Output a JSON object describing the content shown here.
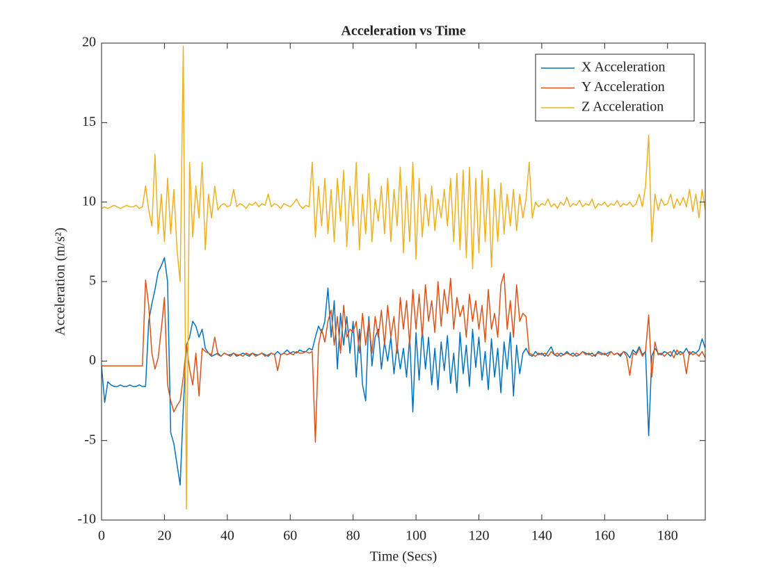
{
  "chart_data": {
    "type": "line",
    "title": "Acceleration vs Time",
    "xlabel": "Time (Secs)",
    "ylabel": "Acceleration (m/s²)",
    "xlim": [
      0,
      192
    ],
    "ylim": [
      -10,
      20
    ],
    "xticks": [
      0,
      20,
      40,
      60,
      80,
      100,
      120,
      140,
      160,
      180
    ],
    "yticks": [
      -10,
      -5,
      0,
      5,
      10,
      15,
      20
    ],
    "legend": "upper right",
    "x": [
      0,
      1,
      2,
      3,
      4,
      5,
      6,
      7,
      8,
      9,
      10,
      11,
      12,
      13,
      14,
      15,
      16,
      17,
      18,
      19,
      20,
      21,
      22,
      23,
      24,
      25,
      26,
      27,
      28,
      29,
      30,
      31,
      32,
      33,
      34,
      35,
      36,
      37,
      38,
      39,
      40,
      41,
      42,
      43,
      44,
      45,
      46,
      47,
      48,
      49,
      50,
      51,
      52,
      53,
      54,
      55,
      56,
      57,
      58,
      59,
      60,
      61,
      62,
      63,
      64,
      65,
      66,
      67,
      68,
      69,
      70,
      71,
      72,
      73,
      74,
      75,
      76,
      77,
      78,
      79,
      80,
      81,
      82,
      83,
      84,
      85,
      86,
      87,
      88,
      89,
      90,
      91,
      92,
      93,
      94,
      95,
      96,
      97,
      98,
      99,
      100,
      101,
      102,
      103,
      104,
      105,
      106,
      107,
      108,
      109,
      110,
      111,
      112,
      113,
      114,
      115,
      116,
      117,
      118,
      119,
      120,
      121,
      122,
      123,
      124,
      125,
      126,
      127,
      128,
      129,
      130,
      131,
      132,
      133,
      134,
      135,
      136,
      137,
      138,
      139,
      140,
      141,
      142,
      143,
      144,
      145,
      146,
      147,
      148,
      149,
      150,
      151,
      152,
      153,
      154,
      155,
      156,
      157,
      158,
      159,
      160,
      161,
      162,
      163,
      164,
      165,
      166,
      167,
      168,
      169,
      170,
      171,
      172,
      173,
      174,
      175,
      176,
      177,
      178,
      179,
      180,
      181,
      182,
      183,
      184,
      185,
      186,
      187,
      188,
      189,
      190,
      191,
      192
    ],
    "series": [
      {
        "name": "X Acceleration",
        "color": "#0072BD",
        "values": [
          -0.3,
          -2.6,
          -1.3,
          -1.5,
          -1.6,
          -1.6,
          -1.5,
          -1.6,
          -1.6,
          -1.5,
          -1.6,
          -1.6,
          -1.5,
          -1.6,
          -1.6,
          2.5,
          3.6,
          4.5,
          5.6,
          6.0,
          6.5,
          5.0,
          -4.5,
          -5.2,
          -6.5,
          -7.8,
          -3.0,
          1.0,
          1.5,
          2.5,
          2.2,
          1.5,
          2.0,
          0.8,
          0.5,
          0.3,
          0.4,
          0.5,
          0.3,
          0.5,
          0.4,
          0.4,
          0.5,
          0.3,
          0.4,
          0.5,
          0.4,
          0.3,
          0.5,
          0.4,
          0.4,
          0.5,
          0.4,
          0.3,
          0.5,
          0.4,
          0.6,
          0.4,
          0.5,
          0.7,
          0.5,
          0.6,
          0.5,
          0.7,
          0.6,
          0.6,
          0.8,
          0.7,
          1.5,
          2.2,
          1.8,
          2.5,
          4.6,
          1.5,
          3.8,
          -0.5,
          3.0,
          1.0,
          2.8,
          0.5,
          2.5,
          -1.0,
          2.0,
          -1.5,
          -2.5,
          2.8,
          -0.3,
          1.5,
          2.0,
          -0.5,
          1.2,
          0.0,
          1.5,
          -0.8,
          1.0,
          -0.5,
          0.8,
          -1.0,
          1.5,
          -3.2,
          1.8,
          -1.2,
          2.0,
          -0.5,
          1.5,
          -1.5,
          0.8,
          -1.8,
          1.2,
          -0.6,
          1.6,
          -1.4,
          0.5,
          -2.0,
          1.8,
          -0.8,
          1.0,
          -1.6,
          2.0,
          -0.4,
          1.5,
          -1.2,
          0.6,
          -1.8,
          1.4,
          -1.0,
          0.8,
          -2.0,
          1.2,
          -0.5,
          1.8,
          -2.2,
          1.0,
          -0.8,
          0.5,
          0.8,
          0.4,
          0.3,
          0.6,
          0.4,
          0.5,
          0.3,
          0.6,
          0.9,
          0.4,
          0.3,
          0.5,
          0.4,
          0.6,
          0.4,
          0.5,
          0.3,
          0.4,
          0.6,
          0.5,
          0.4,
          0.5,
          0.3,
          0.6,
          0.5,
          0.4,
          0.5,
          0.6,
          0.4,
          0.5,
          0.3,
          0.6,
          0.5,
          0.2,
          0.7,
          0.5,
          0.9,
          0.4,
          0.6,
          -4.7,
          0.3,
          0.8,
          0.5,
          0.4,
          0.6,
          0.5,
          0.3,
          0.7,
          0.4,
          0.6,
          0.5,
          0.8,
          0.4,
          0.6,
          0.5,
          0.7,
          1.4,
          0.8
        ]
      },
      {
        "name": "Y Acceleration",
        "color": "#D95319",
        "values": [
          -0.3,
          -0.3,
          -0.3,
          -0.3,
          -0.3,
          -0.3,
          -0.3,
          -0.3,
          -0.3,
          -0.3,
          -0.3,
          -0.3,
          -0.3,
          -0.3,
          5.1,
          3.5,
          0.5,
          -0.5,
          0.2,
          2.0,
          4.0,
          -1.5,
          -2.5,
          -3.2,
          -2.8,
          -2.5,
          -1.0,
          1.0,
          -0.5,
          -1.5,
          0.5,
          -2.2,
          0.8,
          0.6,
          0.5,
          0.4,
          1.5,
          0.4,
          0.3,
          0.5,
          0.4,
          0.3,
          0.5,
          0.4,
          0.4,
          0.3,
          0.5,
          0.4,
          0.5,
          0.3,
          0.4,
          0.5,
          0.3,
          0.4,
          0.5,
          0.4,
          -0.6,
          0.4,
          0.5,
          0.4,
          0.5,
          0.4,
          0.6,
          0.5,
          0.5,
          0.6,
          0.5,
          0.6,
          -5.1,
          1.0,
          2.0,
          1.2,
          2.5,
          3.2,
          1.0,
          2.8,
          0.5,
          3.5,
          1.5,
          2.0,
          1.8,
          2.5,
          0.5,
          3.0,
          1.0,
          2.5,
          0.5,
          2.8,
          1.5,
          3.2,
          1.0,
          3.5,
          1.5,
          2.8,
          0.5,
          4.0,
          2.0,
          3.8,
          1.0,
          4.5,
          2.0,
          4.2,
          1.5,
          4.8,
          2.5,
          3.8,
          1.8,
          5.0,
          2.2,
          4.5,
          3.0,
          5.2,
          2.0,
          4.0,
          2.8,
          3.5,
          1.5,
          4.2,
          2.5,
          3.8,
          2.0,
          3.5,
          1.2,
          4.5,
          2.0,
          3.0,
          1.5,
          4.8,
          5.5,
          2.0,
          3.8,
          1.5,
          4.8,
          2.5,
          3.0,
          2.8,
          0.5,
          0.4,
          0.3,
          0.5,
          0.4,
          0.5,
          0.3,
          0.6,
          0.4,
          0.5,
          0.3,
          0.4,
          0.5,
          0.4,
          0.3,
          0.5,
          0.4,
          0.6,
          0.4,
          0.5,
          0.3,
          0.4,
          0.5,
          0.4,
          0.5,
          0.3,
          0.6,
          0.4,
          0.5,
          0.4,
          0.6,
          0.3,
          -0.9,
          0.5,
          0.4,
          0.8,
          0.3,
          0.6,
          2.9,
          -1.0,
          1.2,
          0.4,
          0.5,
          0.3,
          0.5,
          0.6,
          0.2,
          0.7,
          0.4,
          0.5,
          -0.8,
          0.6,
          0.4,
          0.5,
          0.3,
          0.6,
          0.2
        ]
      },
      {
        "name": "Z Acceleration",
        "color": "#EDB120",
        "values": [
          9.6,
          9.7,
          9.6,
          9.7,
          9.8,
          9.7,
          9.6,
          9.7,
          9.8,
          9.7,
          9.7,
          9.8,
          9.6,
          9.7,
          11.0,
          9.5,
          8.5,
          13.0,
          8.0,
          10.5,
          7.5,
          11.5,
          8.0,
          10.8,
          7.0,
          5.0,
          19.8,
          -9.3,
          12.5,
          7.8,
          11.0,
          9.0,
          12.5,
          7.0,
          10.5,
          9.0,
          11.0,
          9.5,
          9.8,
          9.9,
          9.7,
          9.8,
          10.8,
          9.7,
          9.9,
          9.8,
          9.6,
          9.9,
          9.8,
          10.0,
          9.7,
          9.9,
          9.8,
          10.5,
          9.7,
          9.9,
          9.8,
          9.6,
          9.9,
          9.8,
          9.7,
          9.9,
          10.2,
          9.8,
          9.6,
          9.8,
          9.7,
          12.5,
          7.8,
          11.0,
          8.5,
          11.5,
          8.0,
          10.8,
          7.5,
          11.5,
          8.8,
          12.0,
          7.2,
          11.0,
          8.5,
          12.5,
          7.0,
          10.5,
          8.0,
          11.8,
          7.5,
          10.2,
          8.8,
          11.0,
          8.0,
          11.5,
          7.5,
          10.8,
          8.5,
          12.2,
          6.8,
          11.0,
          7.5,
          12.5,
          6.4,
          11.5,
          7.8,
          10.5,
          8.5,
          11.0,
          8.2,
          10.2,
          9.0,
          10.8,
          8.5,
          11.5,
          7.5,
          11.8,
          7.0,
          12.0,
          6.5,
          12.2,
          5.8,
          11.5,
          6.8,
          12.0,
          7.5,
          11.5,
          5.9,
          10.8,
          7.5,
          11.2,
          8.0,
          10.5,
          8.5,
          10.8,
          8.2,
          10.5,
          9.0,
          10.2,
          12.5,
          9.0,
          10.0,
          9.7,
          9.9,
          9.8,
          10.2,
          9.7,
          9.9,
          9.6,
          10.0,
          9.8,
          10.3,
          9.7,
          9.9,
          9.8,
          10.1,
          9.7,
          9.9,
          9.8,
          10.2,
          9.6,
          9.9,
          9.8,
          10.0,
          9.7,
          9.9,
          9.8,
          10.1,
          9.7,
          9.9,
          9.8,
          10.0,
          9.7,
          9.9,
          10.5,
          9.7,
          11.0,
          14.2,
          7.5,
          10.5,
          9.5,
          10.2,
          9.8,
          9.9,
          10.5,
          9.6,
          10.2,
          9.8,
          10.3,
          9.7,
          10.8,
          9.4,
          10.5,
          9.0,
          10.8,
          9.5
        ]
      }
    ]
  }
}
